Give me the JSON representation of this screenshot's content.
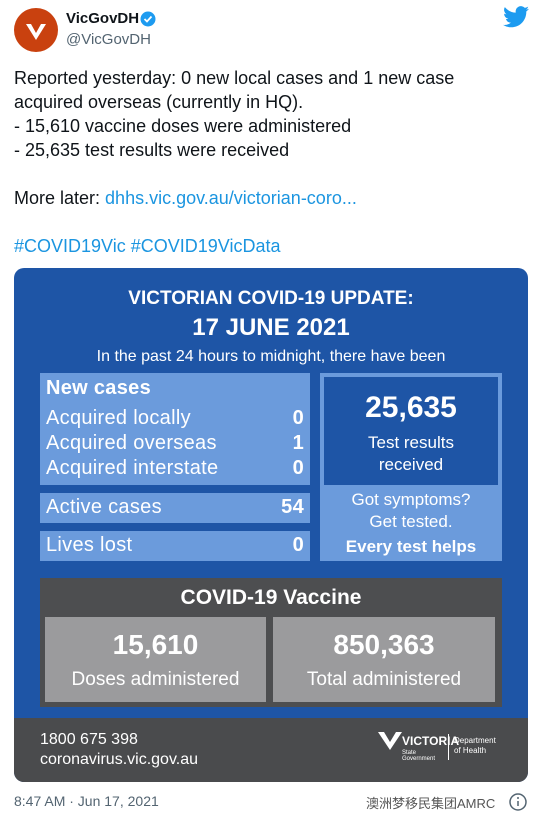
{
  "account": {
    "name": "VicGovDH",
    "handle": "@VicGovDH"
  },
  "tweet": {
    "intro": "Reported yesterday: 0 new local cases and 1 new case acquired overseas (currently in HQ).",
    "bullets": [
      "- 15,610 vaccine doses were administered",
      "- 25,635 test results were received"
    ],
    "more_label": "More later:",
    "link": "dhhs.vic.gov.au/victorian-coro...",
    "hashtags": [
      "#COVID19Vic",
      "#COVID19VicData"
    ]
  },
  "image": {
    "title": "VICTORIAN COVID-19 UPDATE:",
    "date": "17 JUNE 2021",
    "subtitle": "In the past 24 hours to midnight, there have been",
    "new_cases": {
      "header": "New cases",
      "rows": [
        [
          "Acquired locally",
          "0"
        ],
        [
          "Acquired overseas",
          "1"
        ],
        [
          "Acquired interstate",
          "0"
        ]
      ]
    },
    "active_cases": [
      "Active cases",
      "54"
    ],
    "lives_lost": [
      "Lives lost",
      "0"
    ],
    "tests": {
      "value": "25,635",
      "label_lines": [
        "Test results",
        "received"
      ]
    },
    "symptoms": {
      "lines": [
        "Got symptoms?",
        "Get tested."
      ],
      "tagline": "Every test helps"
    },
    "vaccine": {
      "title": "COVID-19 Vaccine",
      "boxes": [
        {
          "value": "15,610",
          "label": "Doses administered"
        },
        {
          "value": "850,363",
          "label": "Total administered"
        }
      ]
    },
    "footer": {
      "phone": "1800 675 398",
      "site": "coronavirus.vic.gov.au",
      "logo": "VICTORIA",
      "logo_sub": "State Government",
      "department": [
        "Department",
        "of Health"
      ]
    }
  },
  "timestamp": "8:47 AM · Jun 17, 2021",
  "watermark": "澳洲梦移民集团AMRC"
}
